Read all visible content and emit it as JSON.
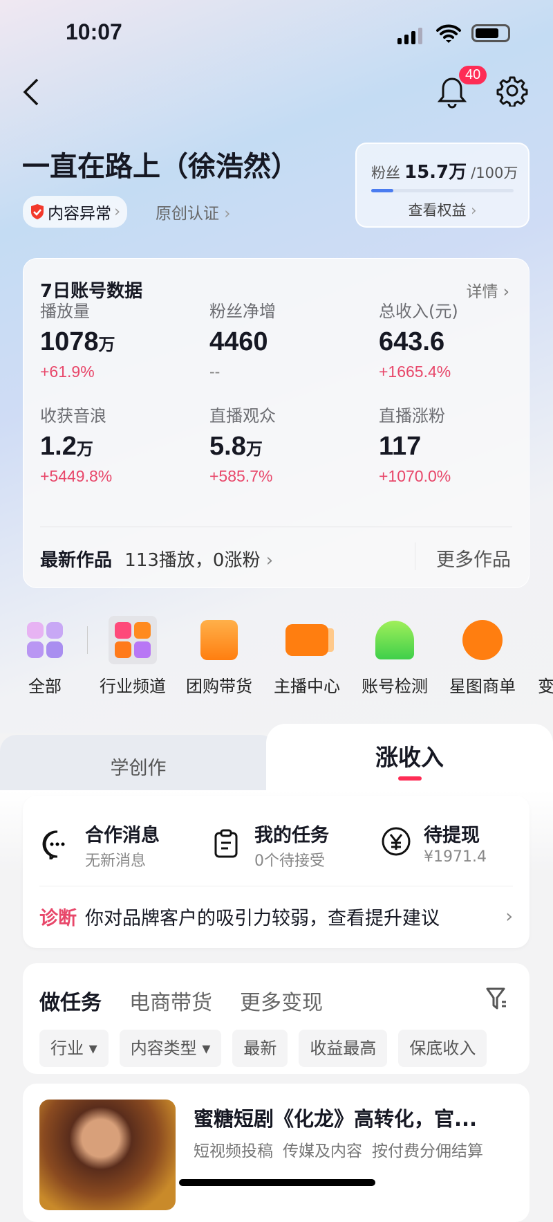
{
  "status_bar": {
    "time": "10:07"
  },
  "header": {
    "notification_count": "40"
  },
  "profile": {
    "name": "一直在路上（徐浩然）",
    "tags": [
      {
        "label": "内容异常"
      },
      {
        "label": "原创认证"
      }
    ]
  },
  "fans_card": {
    "label": "粉丝",
    "count": "15.7万",
    "goal": "/100万",
    "progress": 0.157,
    "link": "查看权益"
  },
  "stats": {
    "title": "7日账号数据",
    "detail": "详情",
    "items": [
      {
        "label": "播放量",
        "value": "1078",
        "unit": "万",
        "change": "+61.9%"
      },
      {
        "label": "粉丝净增",
        "value": "4460",
        "unit": "",
        "change": "--"
      },
      {
        "label": "总收入(元)",
        "value": "643.6",
        "unit": "",
        "change": "+1665.4%"
      },
      {
        "label": "收获音浪",
        "value": "1.2",
        "unit": "万",
        "change": "+5449.8%"
      },
      {
        "label": "直播观众",
        "value": "5.8",
        "unit": "万",
        "change": "+585.7%"
      },
      {
        "label": "直播涨粉",
        "value": "117",
        "unit": "",
        "change": "+1070.0%"
      }
    ],
    "latest_label": "最新作品",
    "latest_summary": "113播放，0涨粉",
    "more_works": "更多作品"
  },
  "shortcuts": [
    {
      "label": "全部"
    },
    {
      "label": "行业频道"
    },
    {
      "label": "团购带货"
    },
    {
      "label": "主播中心"
    },
    {
      "label": "账号检测"
    },
    {
      "label": "星图商单"
    },
    {
      "label": "变"
    }
  ],
  "main_tabs": [
    {
      "label": "学创作"
    },
    {
      "label": "涨收入"
    }
  ],
  "quick": [
    {
      "title": "合作消息",
      "sub": "无新消息"
    },
    {
      "title": "我的任务",
      "sub": "0个待接受"
    },
    {
      "title": "待提现",
      "sub": "¥1971.4"
    }
  ],
  "diagnosis": {
    "tag": "诊断",
    "text": "你对品牌客户的吸引力较弱，查看提升建议"
  },
  "task_tabs": [
    {
      "label": "做任务"
    },
    {
      "label": "电商带货"
    },
    {
      "label": "更多变现"
    }
  ],
  "filters": [
    {
      "label": "行业 ▾"
    },
    {
      "label": "内容类型 ▾"
    },
    {
      "label": "最新"
    },
    {
      "label": "收益最高"
    },
    {
      "label": "保底收入"
    }
  ],
  "task": {
    "title": "蜜糖短剧《化龙》高转化，官...",
    "tags": [
      "短视频投稿",
      "传媒及内容",
      "按付费分佣结算"
    ]
  },
  "colors": {
    "accent": "#fe2c55",
    "up": "#e8476a",
    "fans_bar": "#4a7cf0"
  }
}
